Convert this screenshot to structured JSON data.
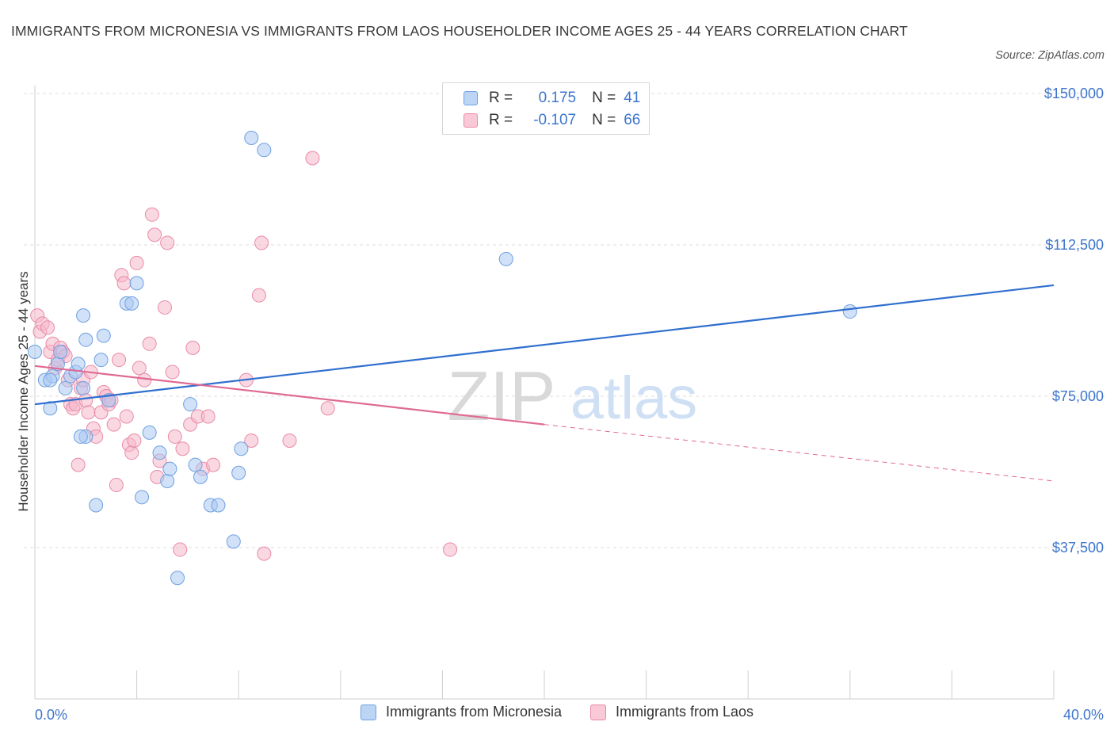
{
  "title": "IMMIGRANTS FROM MICRONESIA VS IMMIGRANTS FROM LAOS HOUSEHOLDER INCOME AGES 25 - 44 YEARS CORRELATION CHART",
  "source": "Source: ZipAtlas.com",
  "watermark": {
    "zip": "ZIP",
    "atlas": "atlas"
  },
  "legend": {
    "r_label": "R =",
    "n_label": "N =",
    "micronesia": {
      "r": "0.175",
      "n": "41"
    },
    "laos": {
      "r": "-0.107",
      "n": "66"
    }
  },
  "colors": {
    "micronesia_fill": "#a9c8f2",
    "micronesia_stroke": "#6fa0e0",
    "micronesia_line": "#2f6fcf",
    "laos_fill": "#f5b8cb",
    "laos_stroke": "#e98aa8",
    "laos_line": "#e06a93",
    "axis_label": "#3e76cc"
  },
  "chart_data": {
    "type": "scatter",
    "title": "IMMIGRANTS FROM MICRONESIA VS IMMIGRANTS FROM LAOS HOUSEHOLDER INCOME AGES 25 - 44 YEARS CORRELATION CHART",
    "xlabel": "",
    "ylabel": "Householder Income Ages 25 - 44 years",
    "xlim": [
      0,
      40
    ],
    "ylim": [
      0,
      150000
    ],
    "x_tick_labels": [
      "0.0%",
      "40.0%"
    ],
    "y_ticks": [
      37500,
      75000,
      112500,
      150000
    ],
    "y_tick_labels": [
      "$37,500",
      "$75,000",
      "$112,500",
      "$150,000"
    ],
    "grid": true,
    "legend_position": "top-center",
    "series": [
      {
        "name": "Immigrants from Micronesia",
        "points": [
          [
            0.0,
            86000
          ],
          [
            0.4,
            79000
          ],
          [
            0.6,
            72000
          ],
          [
            0.7,
            80000
          ],
          [
            0.9,
            83000
          ],
          [
            1.0,
            86000
          ],
          [
            1.2,
            77000
          ],
          [
            1.4,
            80000
          ],
          [
            1.6,
            81000
          ],
          [
            1.7,
            83000
          ],
          [
            1.9,
            95000
          ],
          [
            1.9,
            77000
          ],
          [
            2.0,
            89000
          ],
          [
            2.0,
            65000
          ],
          [
            2.4,
            48000
          ],
          [
            2.6,
            84000
          ],
          [
            2.7,
            90000
          ],
          [
            2.9,
            74000
          ],
          [
            3.6,
            98000
          ],
          [
            3.8,
            98000
          ],
          [
            4.0,
            103000
          ],
          [
            4.2,
            50000
          ],
          [
            4.5,
            66000
          ],
          [
            4.9,
            61000
          ],
          [
            5.2,
            54000
          ],
          [
            5.3,
            57000
          ],
          [
            5.6,
            30000
          ],
          [
            6.1,
            73000
          ],
          [
            6.3,
            58000
          ],
          [
            6.5,
            55000
          ],
          [
            6.9,
            48000
          ],
          [
            7.2,
            48000
          ],
          [
            7.8,
            39000
          ],
          [
            8.0,
            56000
          ],
          [
            8.1,
            62000
          ],
          [
            8.5,
            139000
          ],
          [
            9.0,
            136000
          ],
          [
            18.5,
            109000
          ],
          [
            32.0,
            96000
          ],
          [
            0.6,
            79000
          ],
          [
            1.8,
            65000
          ]
        ]
      },
      {
        "name": "Immigrants from Laos",
        "points": [
          [
            0.1,
            95000
          ],
          [
            0.2,
            91000
          ],
          [
            0.3,
            93000
          ],
          [
            0.5,
            92000
          ],
          [
            0.6,
            86000
          ],
          [
            0.7,
            88000
          ],
          [
            0.8,
            82000
          ],
          [
            0.9,
            84000
          ],
          [
            1.0,
            87000
          ],
          [
            1.1,
            86000
          ],
          [
            1.2,
            85000
          ],
          [
            1.3,
            79000
          ],
          [
            1.4,
            73000
          ],
          [
            1.5,
            72000
          ],
          [
            1.6,
            73000
          ],
          [
            1.7,
            58000
          ],
          [
            1.8,
            77000
          ],
          [
            1.9,
            79000
          ],
          [
            2.0,
            74000
          ],
          [
            2.1,
            71000
          ],
          [
            2.2,
            81000
          ],
          [
            2.3,
            67000
          ],
          [
            2.4,
            65000
          ],
          [
            2.6,
            71000
          ],
          [
            2.7,
            76000
          ],
          [
            2.8,
            75000
          ],
          [
            2.9,
            73000
          ],
          [
            3.0,
            74000
          ],
          [
            3.1,
            68000
          ],
          [
            3.2,
            53000
          ],
          [
            3.3,
            84000
          ],
          [
            3.4,
            105000
          ],
          [
            3.5,
            103000
          ],
          [
            3.6,
            70000
          ],
          [
            3.7,
            63000
          ],
          [
            3.8,
            61000
          ],
          [
            3.9,
            64000
          ],
          [
            4.0,
            108000
          ],
          [
            4.1,
            82000
          ],
          [
            4.3,
            79000
          ],
          [
            4.5,
            88000
          ],
          [
            4.6,
            120000
          ],
          [
            4.7,
            115000
          ],
          [
            4.8,
            55000
          ],
          [
            4.9,
            59000
          ],
          [
            5.1,
            97000
          ],
          [
            5.2,
            113000
          ],
          [
            5.4,
            81000
          ],
          [
            5.5,
            65000
          ],
          [
            5.7,
            37000
          ],
          [
            5.8,
            62000
          ],
          [
            6.1,
            68000
          ],
          [
            6.2,
            87000
          ],
          [
            6.4,
            70000
          ],
          [
            6.6,
            57000
          ],
          [
            6.8,
            70000
          ],
          [
            7.0,
            58000
          ],
          [
            8.3,
            79000
          ],
          [
            8.5,
            64000
          ],
          [
            8.8,
            100000
          ],
          [
            8.9,
            113000
          ],
          [
            9.0,
            36000
          ],
          [
            10.0,
            64000
          ],
          [
            10.9,
            134000
          ],
          [
            11.5,
            72000
          ],
          [
            16.3,
            37000
          ]
        ]
      }
    ],
    "trendlines": [
      {
        "name": "Immigrants from Micronesia",
        "x": [
          0,
          40
        ],
        "y": [
          73000,
          102500
        ],
        "style": "solid"
      },
      {
        "name": "Immigrants from Laos",
        "x": [
          0,
          20
        ],
        "y": [
          82500,
          68000
        ],
        "style": "solid"
      },
      {
        "name": "Immigrants from Laos",
        "x": [
          20,
          40
        ],
        "y": [
          68000,
          54000
        ],
        "style": "dashed"
      }
    ]
  }
}
